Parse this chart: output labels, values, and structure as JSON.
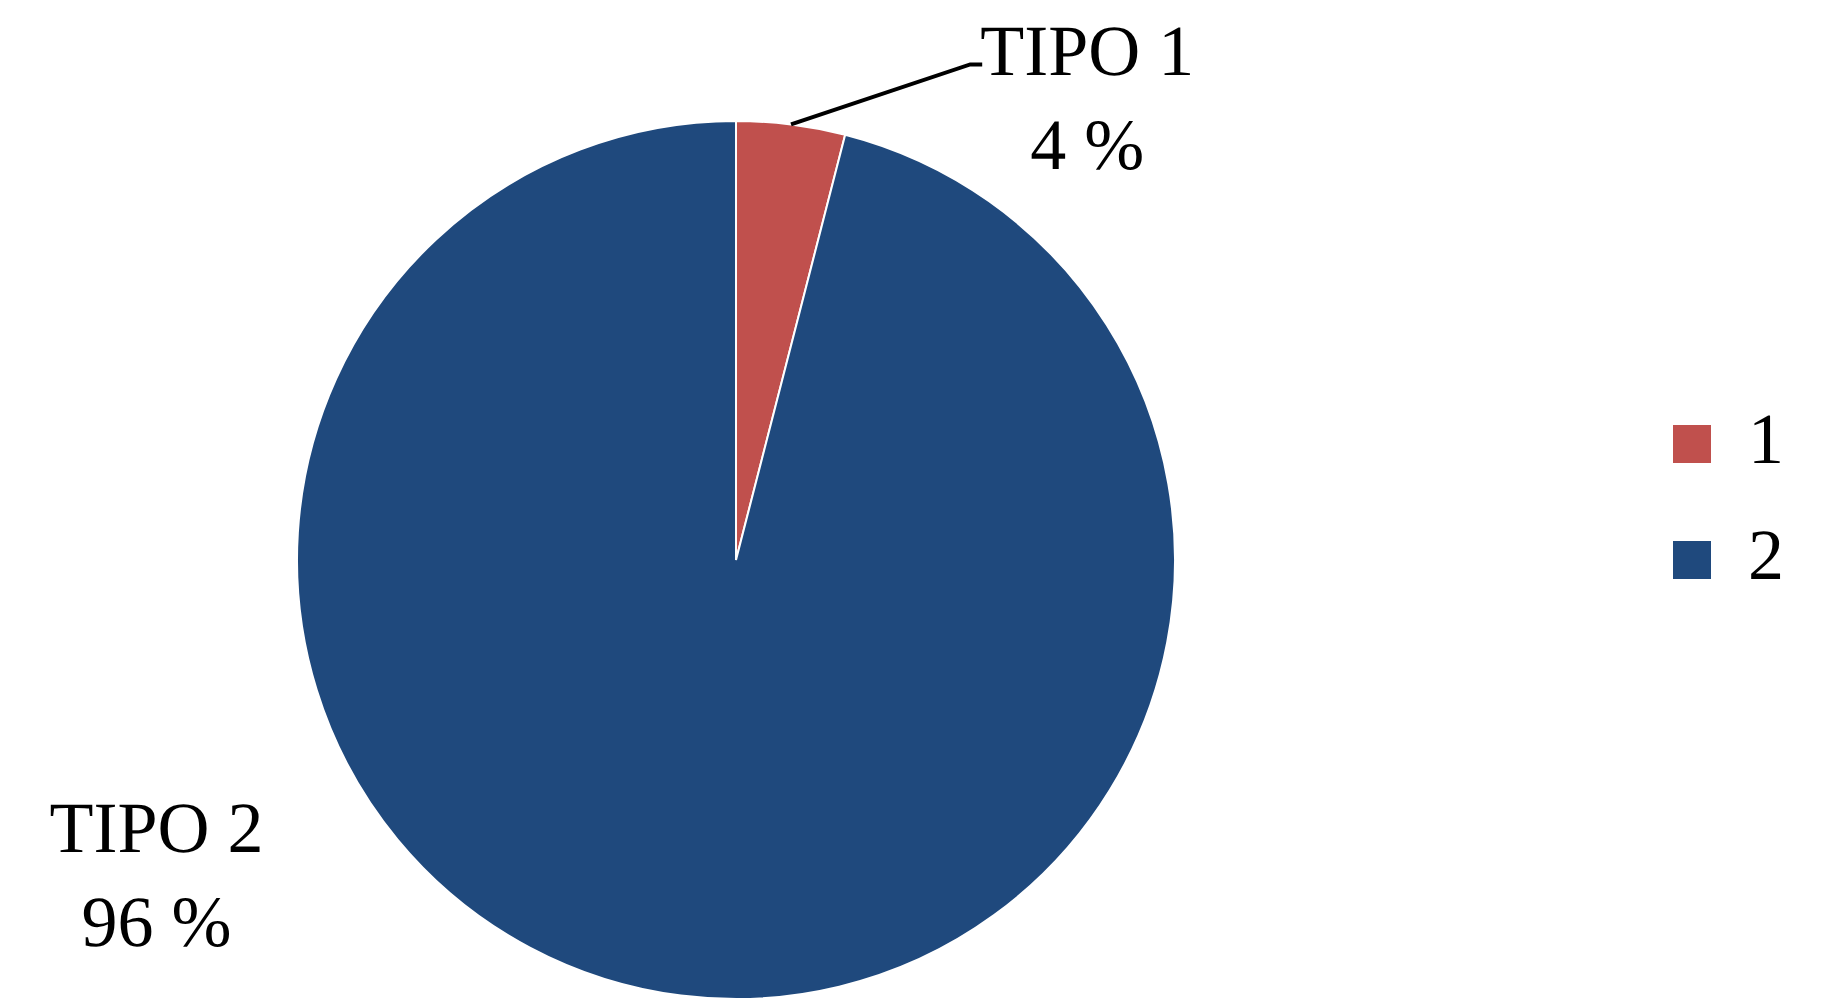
{
  "chart_data": {
    "type": "pie",
    "categories": [
      "1",
      "2"
    ],
    "values": [
      4,
      96
    ],
    "colors": [
      "#c0504d",
      "#1f497d"
    ],
    "value_labels": [
      "TIPO 1\n4 %",
      "TIPO 2\n96 %"
    ],
    "legend": "right"
  }
}
